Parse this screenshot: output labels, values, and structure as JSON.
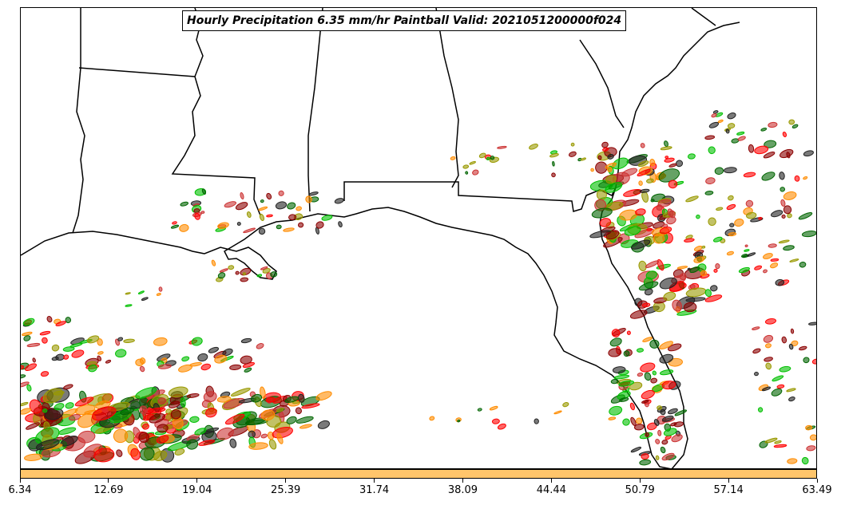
{
  "title": "Hourly Precipitation 6.35 mm/hr Paintball Valid: 2021051200000f024",
  "colorbar": {
    "color": "#ffc56b",
    "tick_labels": [
      "6.34",
      "12.69",
      "19.04",
      "25.39",
      "31.74",
      "38.09",
      "44.44",
      "50.79",
      "57.14",
      "63.49"
    ]
  },
  "member_colors": [
    "#ff0000",
    "#ff8c00",
    "#00c000",
    "#006400",
    "#8b0000",
    "#999900",
    "#222222",
    "#cc3333"
  ],
  "colors": {
    "land_line": "#000000",
    "background": "#ffffff"
  }
}
